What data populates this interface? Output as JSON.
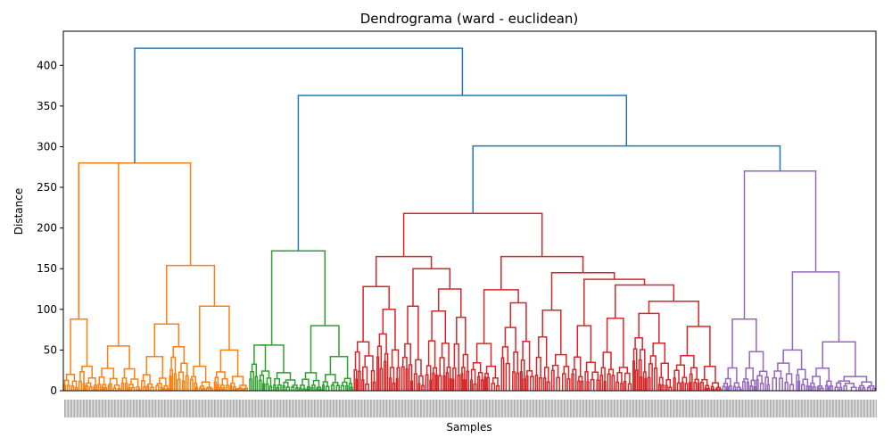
{
  "chart_data": {
    "type": "dendrogram",
    "title": "Dendrograma (ward - euclidean)",
    "xlabel": "Samples",
    "ylabel": "Distance",
    "ylim": [
      0,
      442
    ],
    "yticks": [
      0,
      50,
      100,
      150,
      200,
      250,
      300,
      350,
      400
    ],
    "grid": false,
    "link_color_above_threshold": "#1f77b4",
    "clusters": [
      {
        "color": "#ff7f0e",
        "x_start": 0,
        "x_end": 0.228
      },
      {
        "color": "#2ca02c",
        "x_start": 0.228,
        "x_end": 0.357
      },
      {
        "color": "#d62728",
        "x_start": 0.357,
        "x_end": 0.81
      },
      {
        "color": "#9467bd",
        "x_start": 0.81,
        "x_end": 1.0
      }
    ],
    "top_links": [
      {
        "left": 0.084,
        "right": 0.492,
        "height": 421
      },
      {
        "left": 0.281,
        "right": 0.704,
        "height": 363
      },
      {
        "left": 0.513,
        "right": 0.895,
        "height": 301
      },
      {
        "left": 0.599,
        "right": 0.942,
        "height": 218
      }
    ],
    "cluster_links": [
      {
        "color": "#ff7f0e",
        "left": 0.023,
        "right": 0.142,
        "height": 280
      },
      {
        "color": "#ff7f0e",
        "left": 0.11,
        "right": 0.175,
        "height": 154
      },
      {
        "color": "#ff7f0e",
        "left": 0.007,
        "right": 0.039,
        "height": 88
      },
      {
        "color": "#ff7f0e",
        "left": 0.092,
        "right": 0.127,
        "height": 82
      },
      {
        "color": "#ff7f0e",
        "left": 0.155,
        "right": 0.195,
        "height": 104
      },
      {
        "color": "#ff7f0e",
        "left": 0.03,
        "right": 0.054,
        "height": 55
      },
      {
        "color": "#ff7f0e",
        "left": 0.175,
        "right": 0.206,
        "height": 50
      },
      {
        "color": "#2ca02c",
        "left": 0.252,
        "right": 0.307,
        "height": 172
      },
      {
        "color": "#2ca02c",
        "left": 0.238,
        "right": 0.262,
        "height": 56
      },
      {
        "color": "#2ca02c",
        "left": 0.29,
        "right": 0.325,
        "height": 80
      },
      {
        "color": "#2ca02c",
        "left": 0.315,
        "right": 0.335,
        "height": 42
      },
      {
        "color": "#d62728",
        "left": 0.436,
        "right": 0.71,
        "height": 218
      },
      {
        "color": "#d62728",
        "left": 0.39,
        "right": 0.47,
        "height": 165
      },
      {
        "color": "#d62728",
        "left": 0.56,
        "right": 0.65,
        "height": 165
      },
      {
        "color": "#d62728",
        "left": 0.377,
        "right": 0.403,
        "height": 128
      },
      {
        "color": "#d62728",
        "left": 0.445,
        "right": 0.495,
        "height": 150
      },
      {
        "color": "#d62728",
        "left": 0.538,
        "right": 0.575,
        "height": 124
      },
      {
        "color": "#d62728",
        "left": 0.617,
        "right": 0.695,
        "height": 145
      },
      {
        "color": "#d62728",
        "left": 0.66,
        "right": 0.72,
        "height": 137
      },
      {
        "color": "#d62728",
        "left": 0.69,
        "right": 0.752,
        "height": 130
      },
      {
        "color": "#d62728",
        "left": 0.72,
        "right": 0.785,
        "height": 110
      }
    ],
    "purple_links": [
      {
        "left": 0.83,
        "right": 0.955,
        "height": 270
      },
      {
        "left": 0.828,
        "right": 0.858,
        "height": 88
      },
      {
        "left": 0.91,
        "right": 0.95,
        "height": 146
      },
      {
        "left": 0.89,
        "right": 0.925,
        "height": 50
      },
      {
        "left": 0.935,
        "right": 0.96,
        "height": 60
      }
    ]
  }
}
